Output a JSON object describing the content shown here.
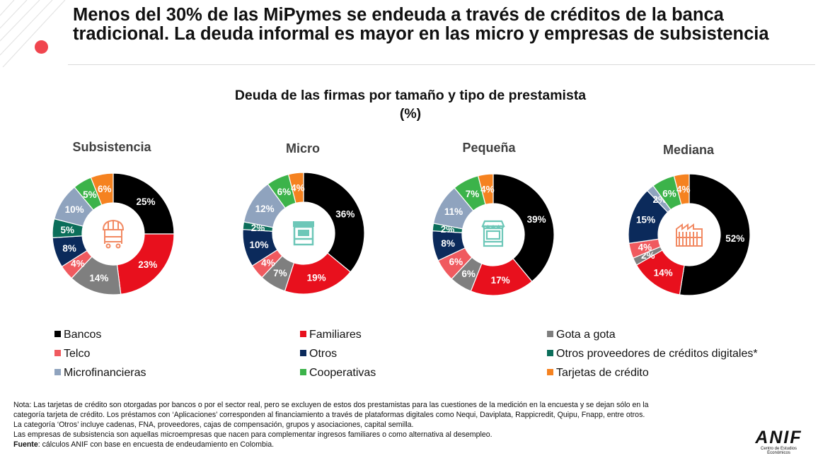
{
  "slide": {
    "title": "Menos del 30% de las MiPymes se endeuda a través de créditos de la banca tradicional. La deuda informal es mayor en las micro y empresas de subsistencia",
    "accent_color": "#f0454e"
  },
  "chart_data": {
    "type": "donut",
    "title_line1": "Deuda de las firmas por tamaño y tipo de prestamista",
    "title_line2": "(%)",
    "unit": "%",
    "series_labels": [
      "Bancos",
      "Familiares",
      "Gota a gota",
      "Telco",
      "Otros",
      "Otros proveedores de créditos digitales*",
      "Microfinancieras",
      "Cooperativas",
      "Tarjetas de crédito"
    ],
    "colors": [
      "#000000",
      "#e8101d",
      "#7f7f7f",
      "#f05a5f",
      "#0b2a5b",
      "#0b6e5a",
      "#8fa3be",
      "#3cb34a",
      "#f58220"
    ],
    "label_colors": [
      "#ffffff",
      "#ffffff",
      "#ffffff",
      "#ffffff",
      "#ffffff",
      "#ffffff",
      "#ffffff",
      "#ffffff",
      "#ffffff"
    ],
    "legend_order": [
      0,
      1,
      2,
      3,
      4,
      5,
      6,
      7,
      8
    ],
    "charts": [
      {
        "category": "Subsistencia",
        "icon": "market-stall-icon",
        "values": [
          25,
          23,
          14,
          4,
          8,
          5,
          10,
          5,
          6
        ],
        "labels": [
          "25%",
          "23%",
          "14%",
          "4%",
          "8%",
          "5%",
          "10%",
          "5%",
          "6%"
        ]
      },
      {
        "category": "Micro",
        "icon": "kiosk-icon",
        "values": [
          36,
          19,
          7,
          4,
          10,
          2,
          12,
          6,
          4
        ],
        "labels": [
          "36%",
          "19%",
          "7%",
          "4%",
          "10%",
          "2%",
          "12%",
          "6%",
          "4%"
        ]
      },
      {
        "category": "Pequeña",
        "icon": "shop-icon",
        "values": [
          39,
          17,
          6,
          6,
          8,
          2,
          11,
          7,
          4
        ],
        "labels": [
          "39%",
          "17%",
          "6%",
          "6%",
          "8%",
          "2%",
          "11%",
          "7%",
          "4%"
        ]
      },
      {
        "category": "Mediana",
        "icon": "factory-icon",
        "values": [
          52,
          14,
          2,
          4,
          15,
          0,
          2,
          6,
          4
        ],
        "labels": [
          "52%",
          "14%",
          "2%",
          "4%",
          "15%",
          "",
          "2%",
          "6%",
          "4%"
        ]
      }
    ]
  },
  "note": {
    "line1": "Nota: Las tarjetas de crédito son otorgadas por bancos o por el sector real, pero se excluyen de estos dos prestamistas para las cuestiones de la medición en la encuesta y se dejan sólo en la",
    "line2": "categoría tarjeta de crédito. Los préstamos con ‘Aplicaciones’ corresponden al financiamiento a través de plataformas digitales como Nequi, Daviplata, Rappicredit, Quipu, Fnapp, entre otros.",
    "line3": "La categoría ‘Otros’ incluye cadenas, FNA, proveedores, cajas de compensación, grupos y asociaciones, capital semilla.",
    "line4": "Las empresas de subsistencia son aquellas microempresas que nacen para complementar ingresos familiares o como alternativa al desempleo.",
    "source_label": "Fuente",
    "source_text": ": cálculos ANIF con base en encuesta de endeudamiento en Colombia."
  },
  "logo": {
    "word": "ANIF",
    "subtitle": "Centro de Estudios Económicos"
  }
}
